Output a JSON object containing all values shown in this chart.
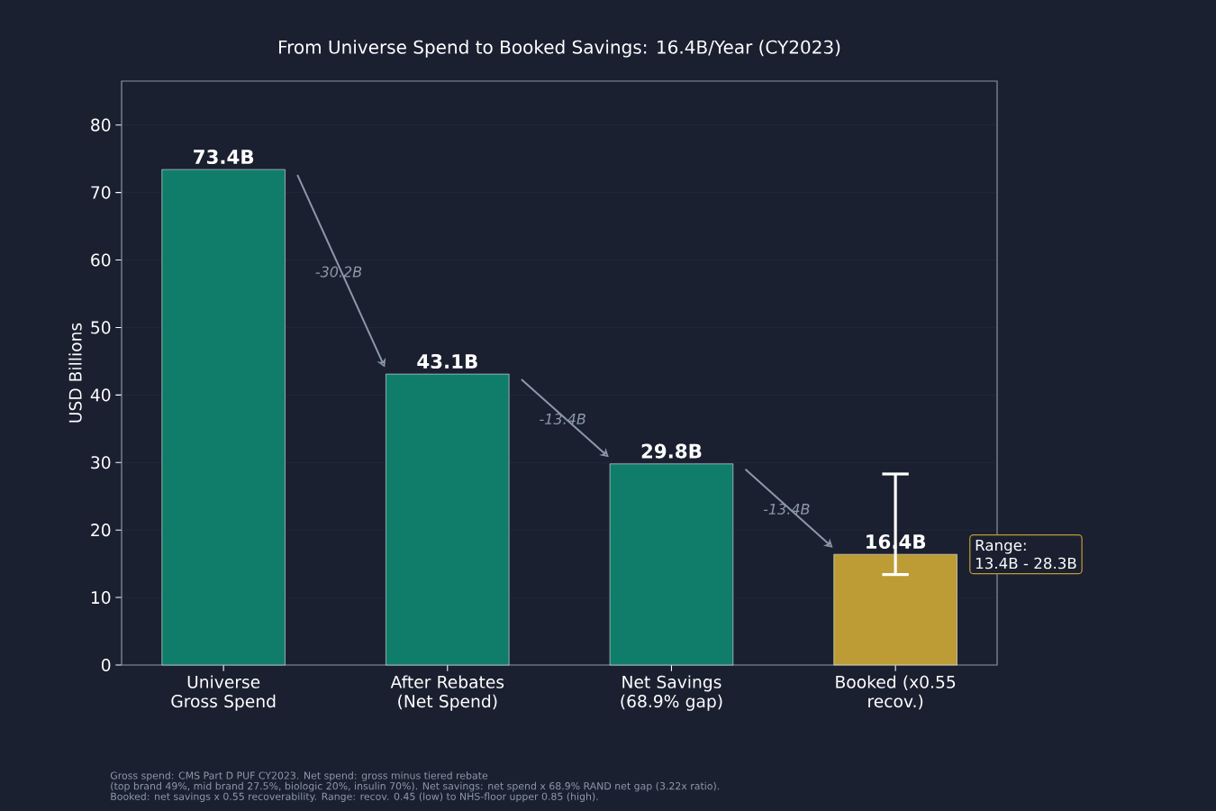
{
  "chart_data": {
    "type": "bar",
    "title": "From Universe Spend to Booked Savings: 16.4B/Year (CY2023)",
    "ylabel": "USD Billions",
    "categories": [
      "Universe Gross Spend",
      "After Rebates (Net Spend)",
      "Net Savings (68.9% gap)",
      "Booked (x0.55 recov.)"
    ],
    "values": [
      73.4,
      43.1,
      29.8,
      16.4
    ],
    "colors": [
      "#107d6a",
      "#107d6a",
      "#107d6a",
      "#bd9c35"
    ],
    "value_labels": [
      "73.4B",
      "43.1B",
      "29.8B",
      "16.4B"
    ],
    "errors": [
      null,
      null,
      null,
      [
        13.4,
        28.3
      ]
    ],
    "ylim": [
      0,
      86.5
    ],
    "yticks": [
      0,
      10,
      20,
      30,
      40,
      50,
      60,
      70,
      80
    ],
    "grid": "y",
    "annotations": [
      "-30.2B",
      "-13.4B",
      "-13.4B",
      "Range:",
      "13.4B - 28.3B",
      "Gross spend: CMS Part D PUF CY2023. Net spend: gross minus tiered rebate",
      "(top brand 49%, mid brand 27.5%, biologic 20%, insulin 70%). Net savings: net spend x 68.9% RAND net gap (3.22x ratio).",
      "Booked: net savings x 0.55 recoverability. Range: recov. 0.45 (low) to NHS-floor upper 0.85 (high)."
    ]
  }
}
